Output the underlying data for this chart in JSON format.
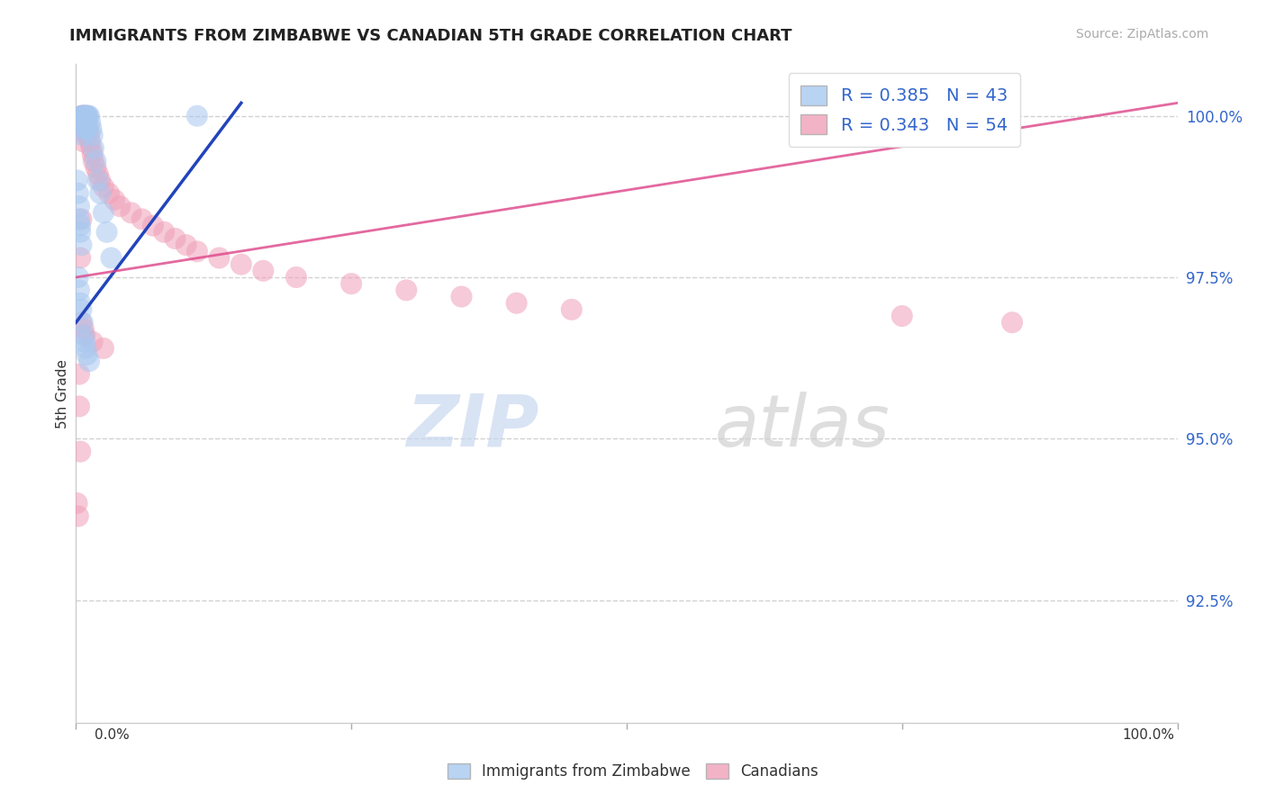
{
  "title": "IMMIGRANTS FROM ZIMBABWE VS CANADIAN 5TH GRADE CORRELATION CHART",
  "source_text": "Source: ZipAtlas.com",
  "ylabel": "5th Grade",
  "y_tick_labels": [
    "92.5%",
    "95.0%",
    "97.5%",
    "100.0%"
  ],
  "y_tick_values": [
    0.925,
    0.95,
    0.975,
    1.0
  ],
  "x_min": 0.0,
  "x_max": 1.0,
  "y_min": 0.906,
  "y_max": 1.008,
  "blue_color": "#a8c8f0",
  "pink_color": "#f0a0b8",
  "blue_line_color": "#2244bb",
  "pink_line_color": "#dd4488",
  "R_blue": 0.385,
  "N_blue": 43,
  "R_pink": 0.343,
  "N_pink": 54,
  "blue_x": [
    0.001,
    0.002,
    0.003,
    0.003,
    0.004,
    0.004,
    0.005,
    0.005,
    0.005,
    0.006,
    0.006,
    0.006,
    0.007,
    0.007,
    0.008,
    0.008,
    0.009,
    0.009,
    0.01,
    0.01,
    0.011,
    0.012,
    0.013,
    0.014,
    0.015,
    0.016,
    0.018,
    0.02,
    0.022,
    0.025,
    0.028,
    0.032,
    0.002,
    0.003,
    0.004,
    0.005,
    0.006,
    0.007,
    0.008,
    0.009,
    0.01,
    0.012,
    0.11
  ],
  "blue_y": [
    0.99,
    0.988,
    0.986,
    0.984,
    0.983,
    0.982,
    0.98,
    0.998,
    1.0,
    1.0,
    1.0,
    0.997,
    1.0,
    0.999,
    1.0,
    0.999,
    1.0,
    0.998,
    1.0,
    0.998,
    1.0,
    1.0,
    0.999,
    0.998,
    0.997,
    0.995,
    0.993,
    0.99,
    0.988,
    0.985,
    0.982,
    0.978,
    0.975,
    0.973,
    0.971,
    0.97,
    0.968,
    0.966,
    0.965,
    0.964,
    0.963,
    0.962,
    1.0
  ],
  "pink_x": [
    0.001,
    0.002,
    0.003,
    0.003,
    0.004,
    0.004,
    0.005,
    0.005,
    0.006,
    0.006,
    0.007,
    0.007,
    0.008,
    0.008,
    0.009,
    0.009,
    0.01,
    0.01,
    0.011,
    0.012,
    0.013,
    0.014,
    0.015,
    0.016,
    0.018,
    0.02,
    0.022,
    0.025,
    0.03,
    0.035,
    0.04,
    0.05,
    0.06,
    0.07,
    0.08,
    0.09,
    0.1,
    0.11,
    0.13,
    0.15,
    0.17,
    0.2,
    0.25,
    0.3,
    0.35,
    0.4,
    0.45,
    0.75,
    0.85,
    0.005,
    0.007,
    0.008,
    0.015,
    0.025
  ],
  "pink_y": [
    0.94,
    0.938,
    0.96,
    0.955,
    0.948,
    0.978,
    0.984,
    1.0,
    1.0,
    0.998,
    1.0,
    0.996,
    1.0,
    0.998,
    1.0,
    0.997,
    1.0,
    0.999,
    0.998,
    0.997,
    0.996,
    0.995,
    0.994,
    0.993,
    0.992,
    0.991,
    0.99,
    0.989,
    0.988,
    0.987,
    0.986,
    0.985,
    0.984,
    0.983,
    0.982,
    0.981,
    0.98,
    0.979,
    0.978,
    0.977,
    0.976,
    0.975,
    0.974,
    0.973,
    0.972,
    0.971,
    0.97,
    0.969,
    0.968,
    0.968,
    0.967,
    0.966,
    0.965,
    0.964
  ],
  "watermark_text1": "ZIP",
  "watermark_text2": "atlas",
  "legend_label1": "Immigrants from Zimbabwe",
  "legend_label2": "Canadians"
}
